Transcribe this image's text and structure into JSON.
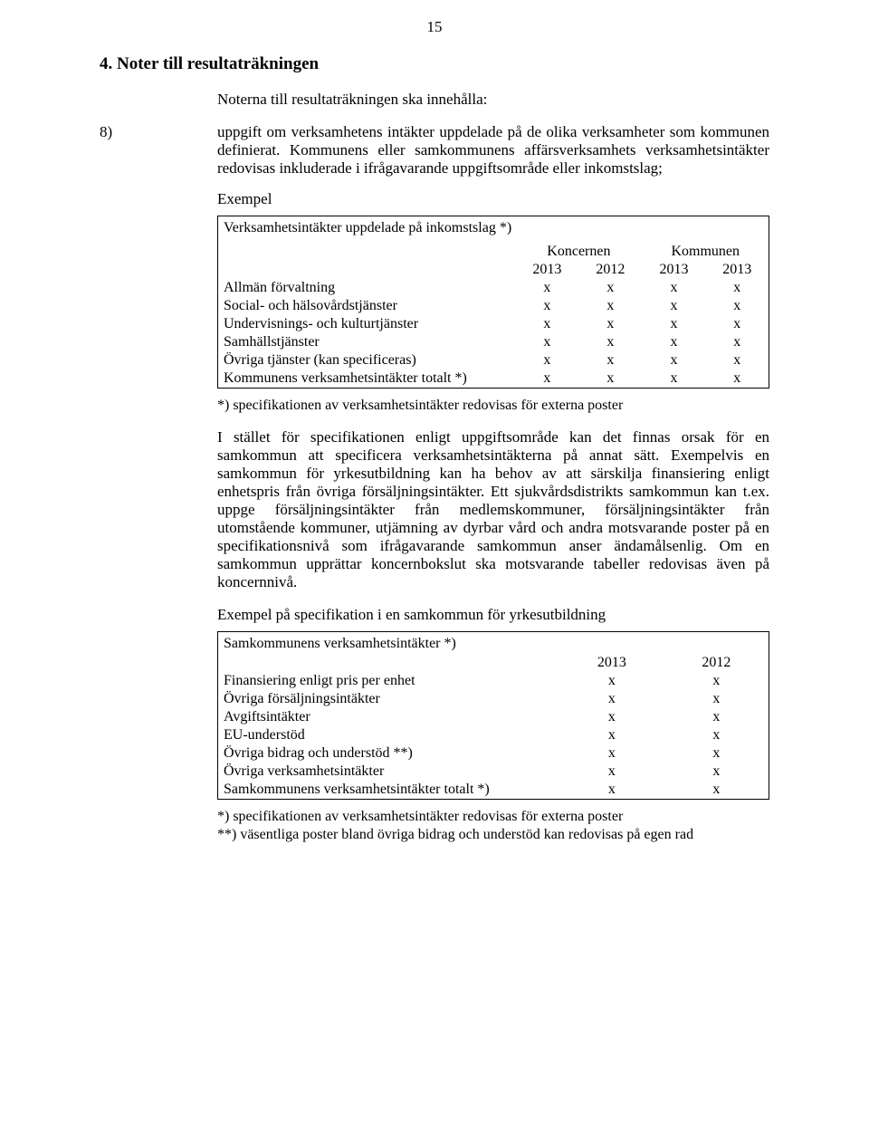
{
  "page_number": "15",
  "heading": "4. Noter till resultaträkningen",
  "intro": "Noterna till resultaträkningen ska innehålla:",
  "item8": {
    "num": "8)",
    "text": "uppgift om verksamhetens intäkter uppdelade på de olika verksamheter som kommunen definierat. Kommunens eller samkommunens affärsverksamhets verksamhetsintäkter redovisas inkluderade i ifrågavarande uppgiftsområde eller inkomstslag;"
  },
  "example1_label": "Exempel",
  "table1": {
    "caption": "Verksamhetsintäkter uppdelade på inkomstslag *)",
    "group_headers": [
      "Koncernen",
      "Kommunen"
    ],
    "year_headers": [
      "2013",
      "2012",
      "2013",
      "2013"
    ],
    "rows": [
      {
        "label": "Allmän förvaltning",
        "cells": [
          "x",
          "x",
          "x",
          "x"
        ]
      },
      {
        "label": "Social- och hälsovårdstjänster",
        "cells": [
          "x",
          "x",
          "x",
          "x"
        ]
      },
      {
        "label": "Undervisnings- och kulturtjänster",
        "cells": [
          "x",
          "x",
          "x",
          "x"
        ]
      },
      {
        "label": "Samhällstjänster",
        "cells": [
          "x",
          "x",
          "x",
          "x"
        ]
      },
      {
        "label": "Övriga tjänster (kan specificeras)",
        "cells": [
          "x",
          "x",
          "x",
          "x"
        ]
      },
      {
        "label": "Kommunens verksamhetsintäkter totalt *)",
        "cells": [
          "x",
          "x",
          "x",
          "x"
        ]
      }
    ],
    "footnote": "*) specifikationen av verksamhetsintäkter redovisas för externa poster"
  },
  "para1": "I stället för specifikationen enligt uppgiftsområde kan det finnas orsak för en samkommun att specificera verksamhetsintäkterna på annat sätt. Exempelvis en samkommun för yrkesutbildning kan ha behov av att särskilja finansiering enligt enhetspris från övriga försäljningsintäkter. Ett sjukvårdsdistrikts samkommun kan t.ex. uppge försäljningsintäkter från medlemskommuner, försäljningsintäkter från utomstående kommuner, utjämning av dyrbar vård och andra motsvarande poster på en specifikationsnivå som ifrågavarande samkommun anser ändamålsenlig. Om en samkommun upprättar koncernbokslut ska motsvarande tabeller redovisas även på koncernnivå.",
  "example2_label": "Exempel på specifikation i en samkommun för yrkesutbildning",
  "table2": {
    "caption": "Samkommunens verksamhetsintäkter *)",
    "year_headers": [
      "2013",
      "2012"
    ],
    "rows": [
      {
        "label": "Finansiering enligt pris per enhet",
        "cells": [
          "x",
          "x"
        ]
      },
      {
        "label": "Övriga försäljningsintäkter",
        "cells": [
          "x",
          "x"
        ]
      },
      {
        "label": "Avgiftsintäkter",
        "cells": [
          "x",
          "x"
        ]
      },
      {
        "label": "EU-understöd",
        "cells": [
          "x",
          "x"
        ]
      },
      {
        "label": "Övriga bidrag och understöd **)",
        "cells": [
          "x",
          "x"
        ]
      },
      {
        "label": "Övriga verksamhetsintäkter",
        "cells": [
          "x",
          "x"
        ]
      },
      {
        "label": "Samkommunens verksamhetsintäkter totalt  *)",
        "cells": [
          "x",
          "x"
        ]
      }
    ],
    "footnotes": [
      "*) specifikationen av verksamhetsintäkter redovisas för externa poster",
      "**) väsentliga poster bland övriga bidrag och understöd kan redovisas på egen rad"
    ]
  },
  "style": {
    "font_family": "Times New Roman",
    "text_color": "#000000",
    "background_color": "#ffffff",
    "heading_fontsize_pt": 14,
    "body_fontsize_pt": 12,
    "table_fontsize_pt": 11,
    "table_border_color": "#000000"
  }
}
